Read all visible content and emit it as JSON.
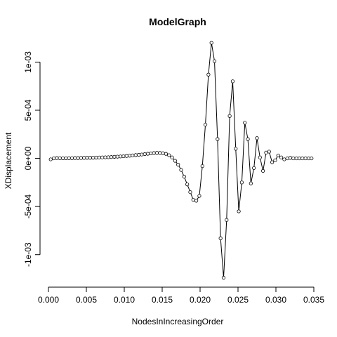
{
  "chart_data": {
    "type": "line",
    "title": "ModelGraph",
    "xlabel": "NodesInIncreasingOrder",
    "ylabel": "XDisplacement",
    "xlim": [
      0.0,
      0.035
    ],
    "ylim": [
      -0.00125,
      0.0012
    ],
    "x_ticks": [
      0.0,
      0.005,
      0.01,
      0.015,
      0.02,
      0.025,
      0.03,
      0.035
    ],
    "x_tick_labels": [
      "0.000",
      "0.005",
      "0.010",
      "0.015",
      "0.020",
      "0.025",
      "0.030",
      "0.035"
    ],
    "y_ticks": [
      -0.001,
      -0.0005,
      0.0,
      0.0005,
      0.001
    ],
    "y_tick_labels": [
      "-1e-03",
      "-5e-04",
      "0e+00",
      "5e-04",
      "1e-03"
    ],
    "grid": false,
    "marker": "open-circle",
    "series": [
      {
        "x": [
          0.0003,
          0.0007,
          0.0011,
          0.0015,
          0.0019,
          0.0023,
          0.0027,
          0.0031,
          0.0035,
          0.0039,
          0.0043,
          0.0047,
          0.0051,
          0.0055,
          0.0059,
          0.0063,
          0.0067,
          0.0071,
          0.0075,
          0.0079,
          0.0083,
          0.0087,
          0.0091,
          0.0095,
          0.0099,
          0.0103,
          0.0107,
          0.0111,
          0.0115,
          0.0119,
          0.0123,
          0.0127,
          0.0131,
          0.0135,
          0.0139,
          0.0143,
          0.0147,
          0.0151,
          0.0155,
          0.0159,
          0.0163,
          0.0167,
          0.0171,
          0.0175,
          0.0179,
          0.0183,
          0.0187,
          0.0191,
          0.0195,
          0.0199,
          0.0203,
          0.0207,
          0.0211,
          0.0215,
          0.0219,
          0.0223,
          0.0227,
          0.0231,
          0.0235,
          0.0239,
          0.0243,
          0.0247,
          0.0251,
          0.0255,
          0.0259,
          0.0263,
          0.0267,
          0.0271,
          0.0275,
          0.0279,
          0.0283,
          0.0287,
          0.0291,
          0.0295,
          0.0299,
          0.0303,
          0.0307,
          0.0311,
          0.0315,
          0.0319,
          0.0323,
          0.0327,
          0.0331,
          0.0335,
          0.0339,
          0.0343,
          0.0347
        ],
        "y": [
          -1e-05,
          0.0,
          3e-06,
          2e-06,
          1e-06,
          1e-06,
          2e-06,
          2e-06,
          3e-06,
          3e-06,
          4e-06,
          5e-06,
          6e-06,
          6e-06,
          7e-06,
          8e-06,
          9e-06,
          1e-05,
          1.1e-05,
          1.2e-05,
          1.4e-05,
          1.6e-05,
          1.8e-05,
          2e-05,
          2.2e-05,
          2.5e-05,
          2.8e-05,
          3.1e-05,
          3.4e-05,
          3.7e-05,
          4e-05,
          4.4e-05,
          4.8e-05,
          5.2e-05,
          5.5e-05,
          5.7e-05,
          5.6e-05,
          5.4e-05,
          4.7e-05,
          3.3e-05,
          1e-05,
          -2.5e-05,
          -6.5e-05,
          -0.00012,
          -0.00019,
          -0.00027,
          -0.00035,
          -0.00043,
          -0.00044,
          -0.00039,
          -8e-05,
          0.00035,
          0.00087,
          0.0012,
          0.00101,
          0.0002,
          -0.00083,
          -0.00124,
          -0.00064,
          0.00044,
          0.0008,
          0.0001,
          -0.00055,
          -0.00025,
          0.00037,
          0.0002,
          -0.00026,
          -0.0001,
          0.00021,
          1e-05,
          -0.00013,
          6e-05,
          7e-05,
          -4e-05,
          -2e-05,
          3e-05,
          1e-05,
          -1e-05,
          0.0,
          5e-06,
          0.0,
          0.0,
          0.0,
          0.0,
          0.0,
          0.0,
          0.0
        ]
      }
    ]
  }
}
